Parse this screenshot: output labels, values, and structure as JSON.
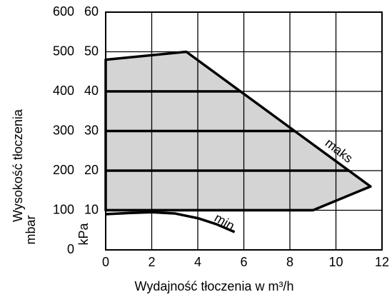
{
  "chart_data": {
    "type": "area",
    "xlabel": "Wydajność tłoczenia w m³/h",
    "ylabel": "Wysokość tłoczenia",
    "yunit": "mbar",
    "y2unit": "kPa",
    "xlim": [
      0,
      12
    ],
    "xticks": [
      0,
      2,
      4,
      6,
      8,
      10,
      12
    ],
    "ylim": [
      0,
      600
    ],
    "yticks": [
      0,
      100,
      200,
      300,
      400,
      500,
      600
    ],
    "y2lim": [
      0,
      60
    ],
    "y2ticks": [
      10,
      20,
      30,
      40,
      50,
      60
    ],
    "grid": true,
    "series": [
      {
        "name": "maks",
        "color": "#d4d4d4",
        "x": [
          0,
          3.5,
          11.5,
          9,
          0
        ],
        "values": [
          480,
          500,
          160,
          100,
          100
        ]
      },
      {
        "name": "min.",
        "color": "#000000",
        "x": [
          0,
          1,
          2,
          3,
          4,
          4.8,
          5.6
        ],
        "values": [
          90,
          93,
          95,
          92,
          80,
          65,
          45
        ]
      }
    ]
  }
}
